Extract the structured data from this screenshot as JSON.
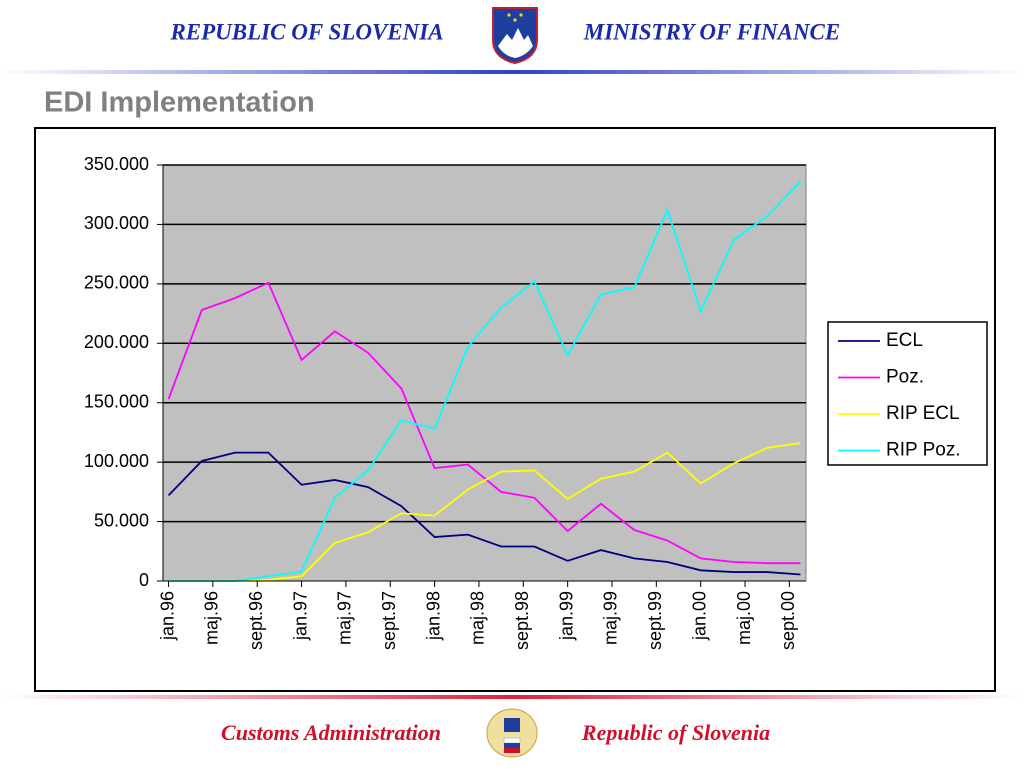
{
  "header": {
    "left": "REPUBLIC OF SLOVENIA",
    "right": "MINISTRY OF FINANCE"
  },
  "footer": {
    "left": "Customs Administration",
    "right": "Republic of Slovenia"
  },
  "chart_data": {
    "type": "line",
    "title": "EDI  Implementation",
    "x": [
      0,
      3,
      6,
      9,
      12,
      15,
      18,
      21,
      24,
      27,
      30,
      33,
      36,
      39,
      42,
      45,
      48,
      51,
      54,
      57
    ],
    "xlim": [
      -0.5,
      57.5
    ],
    "xticks": [
      {
        "value": 0,
        "label": "jan.96"
      },
      {
        "value": 4,
        "label": "maj.96"
      },
      {
        "value": 8,
        "label": "sept.96"
      },
      {
        "value": 12,
        "label": "jan.97"
      },
      {
        "value": 16,
        "label": "maj.97"
      },
      {
        "value": 20,
        "label": "sept.97"
      },
      {
        "value": 24,
        "label": "jan.98"
      },
      {
        "value": 28,
        "label": "maj.98"
      },
      {
        "value": 32,
        "label": "sept.98"
      },
      {
        "value": 36,
        "label": "jan.99"
      },
      {
        "value": 40,
        "label": "maj.99"
      },
      {
        "value": 44,
        "label": "sept.99"
      },
      {
        "value": 48,
        "label": "jan.00"
      },
      {
        "value": 52,
        "label": "maj.00"
      },
      {
        "value": 56,
        "label": "sept.00"
      }
    ],
    "ylim": [
      0,
      350000
    ],
    "yticks": [
      0,
      {
        "value": 50000,
        "label": "50.000"
      },
      {
        "value": 100000,
        "label": "100.000"
      },
      {
        "value": 150000,
        "label": "150.000"
      },
      {
        "value": 200000,
        "label": "200.000"
      },
      {
        "value": 250000,
        "label": "250.000"
      },
      {
        "value": 300000,
        "label": "300.000"
      },
      {
        "value": 350000,
        "label": "350.000"
      }
    ],
    "grid": true,
    "legend": "right",
    "series": [
      {
        "name": "ECL",
        "color": "#000080",
        "values": [
          72000,
          101000,
          108000,
          108000,
          81000,
          85000,
          79000,
          63000,
          37000,
          39000,
          29000,
          29000,
          17000,
          26000,
          19000,
          16000,
          9000,
          7500,
          7500,
          5500
        ]
      },
      {
        "name": "Poz.",
        "color": "#ff00ff",
        "values": [
          153000,
          228000,
          238000,
          251000,
          186000,
          210000,
          192000,
          162000,
          95000,
          98000,
          75000,
          70000,
          42000,
          65000,
          43000,
          34000,
          19000,
          16000,
          15000,
          15000
        ]
      },
      {
        "name": "RIP ECL",
        "color": "#ffff00",
        "values": [
          0,
          0,
          0,
          1000,
          4000,
          32000,
          41000,
          57000,
          55000,
          77000,
          92000,
          93000,
          69000,
          86000,
          92000,
          108000,
          82000,
          99000,
          112000,
          116000
        ]
      },
      {
        "name": "RIP Poz.",
        "color": "#00ffff",
        "values": [
          0,
          0,
          0,
          4000,
          8000,
          70000,
          93000,
          135000,
          128000,
          197000,
          230000,
          252000,
          190000,
          241000,
          247000,
          312000,
          227000,
          287000,
          307000,
          336000
        ]
      }
    ]
  }
}
